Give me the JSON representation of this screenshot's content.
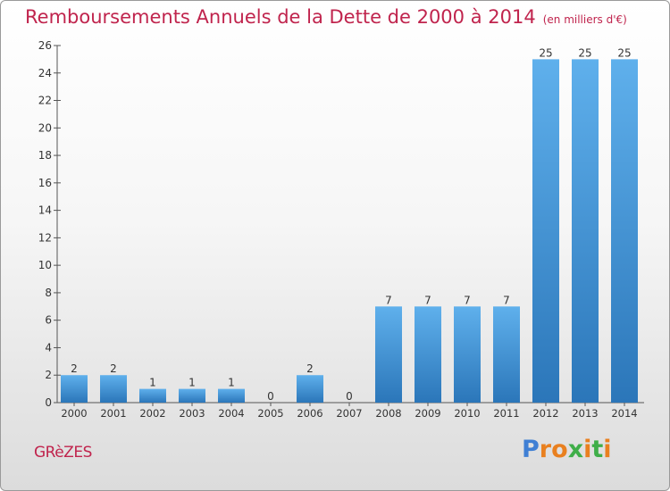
{
  "chart_data": {
    "type": "bar",
    "title": "Remboursements Annuels de la Dette de 2000 à 2014",
    "subtitle": "(en milliers d'€)",
    "categories": [
      "2000",
      "2001",
      "2002",
      "2003",
      "2004",
      "2005",
      "2006",
      "2007",
      "2008",
      "2009",
      "2010",
      "2011",
      "2012",
      "2013",
      "2014"
    ],
    "values": [
      2,
      2,
      1,
      1,
      1,
      0,
      2,
      0,
      7,
      7,
      7,
      7,
      25,
      25,
      25
    ],
    "data_labels": [
      "2",
      "2",
      "1",
      "1",
      "1",
      "0",
      "2",
      "0",
      "7",
      "7",
      "7",
      "7",
      "25",
      "25",
      "25"
    ],
    "ylim": [
      0,
      26
    ],
    "yticks": [
      0,
      2,
      4,
      6,
      8,
      10,
      12,
      14,
      16,
      18,
      20,
      22,
      24,
      26
    ],
    "xlabel": "",
    "ylabel": "",
    "grid": false,
    "legend": "none",
    "bar_color": "#3a8fd6"
  },
  "footer": {
    "commune": "GRèZES",
    "brand_letters": [
      {
        "ch": "P",
        "color": "#3f7fd4"
      },
      {
        "ch": "r",
        "color": "#e9801f"
      },
      {
        "ch": "o",
        "color": "#e9801f"
      },
      {
        "ch": "x",
        "color": "#3fae49"
      },
      {
        "ch": "i",
        "color": "#e9801f"
      },
      {
        "ch": "t",
        "color": "#3fae49"
      },
      {
        "ch": "i",
        "color": "#e9801f"
      }
    ]
  },
  "colors": {
    "title": "#c0244d",
    "axis": "#555555",
    "text": "#333333"
  }
}
